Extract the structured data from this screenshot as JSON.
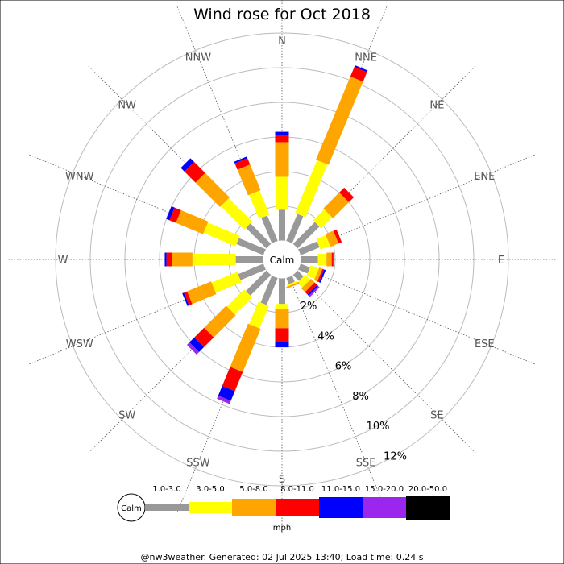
{
  "chart_data": {
    "type": "wind-rose",
    "title": "Wind rose for Oct 2018",
    "directions": [
      "N",
      "NNE",
      "NE",
      "ENE",
      "E",
      "ESE",
      "SE",
      "SSE",
      "S",
      "SSW",
      "SW",
      "WSW",
      "W",
      "WNW",
      "NW",
      "NNW"
    ],
    "rings": [
      2,
      4,
      6,
      8,
      10,
      12
    ],
    "ring_labels": [
      "2%",
      "4%",
      "6%",
      "8%",
      "10%",
      "12%"
    ],
    "calm_label": "Calm",
    "units": "mph",
    "bands": [
      {
        "label": "1.0-3.0",
        "color": "#999999"
      },
      {
        "label": "3.0-5.0",
        "color": "#ffff00"
      },
      {
        "label": "5.0-8.0",
        "color": "#ffa500"
      },
      {
        "label": "8.0-11.0",
        "color": "#ff0000"
      },
      {
        "label": "11.0-15.0",
        "color": "#0000ff"
      },
      {
        "label": "15.0-20.0",
        "color": "#9b27ee"
      },
      {
        "label": "20.0-50.0",
        "color": "#000000"
      }
    ],
    "series": [
      {
        "direction": "N",
        "values": [
          1.8,
          1.9,
          2.0,
          0.4,
          0.2,
          0.0,
          0.0
        ]
      },
      {
        "direction": "NNE",
        "values": [
          1.7,
          3.3,
          5.2,
          0.6,
          0.1,
          0.0,
          0.0
        ]
      },
      {
        "direction": "NE",
        "values": [
          1.8,
          0.9,
          1.3,
          0.4,
          0.0,
          0.0,
          0.0
        ]
      },
      {
        "direction": "ENE",
        "values": [
          1.2,
          0.6,
          0.5,
          0.2,
          0.0,
          0.0,
          0.0
        ]
      },
      {
        "direction": "E",
        "values": [
          1.0,
          0.5,
          0.3,
          0.1,
          0.0,
          0.0,
          0.0
        ]
      },
      {
        "direction": "ESE",
        "values": [
          0.6,
          0.5,
          0.2,
          0.1,
          0.1,
          0.0,
          0.0
        ]
      },
      {
        "direction": "SE",
        "values": [
          0.5,
          0.4,
          0.3,
          0.2,
          0.1,
          0.1,
          0.0
        ]
      },
      {
        "direction": "SSE",
        "values": [
          0.4,
          0.1,
          0.1,
          0.0,
          0.0,
          0.0,
          0.0
        ]
      },
      {
        "direction": "S",
        "values": [
          1.5,
          0.3,
          1.1,
          0.8,
          0.3,
          0.0,
          0.0
        ]
      },
      {
        "direction": "SSW",
        "values": [
          1.7,
          1.4,
          2.7,
          1.2,
          0.6,
          0.2,
          0.0
        ]
      },
      {
        "direction": "SW",
        "values": [
          1.7,
          1.4,
          1.8,
          0.8,
          0.4,
          0.2,
          0.0
        ]
      },
      {
        "direction": "WSW",
        "values": [
          1.6,
          1.6,
          1.5,
          0.2,
          0.1,
          0.0,
          0.0
        ]
      },
      {
        "direction": "W",
        "values": [
          1.6,
          2.5,
          1.2,
          0.3,
          0.1,
          0.0,
          0.0
        ]
      },
      {
        "direction": "WNW",
        "values": [
          1.7,
          2.0,
          1.7,
          0.4,
          0.2,
          0.0,
          0.0
        ]
      },
      {
        "direction": "NW",
        "values": [
          1.7,
          1.9,
          2.0,
          0.9,
          0.3,
          0.0,
          0.0
        ]
      },
      {
        "direction": "NNW",
        "values": [
          1.6,
          1.5,
          1.6,
          0.4,
          0.1,
          0.0,
          0.0
        ]
      }
    ]
  },
  "footer": "@nw3weather. Generated: 02 Jul 2025 13:40; Load time: 0.24 s"
}
